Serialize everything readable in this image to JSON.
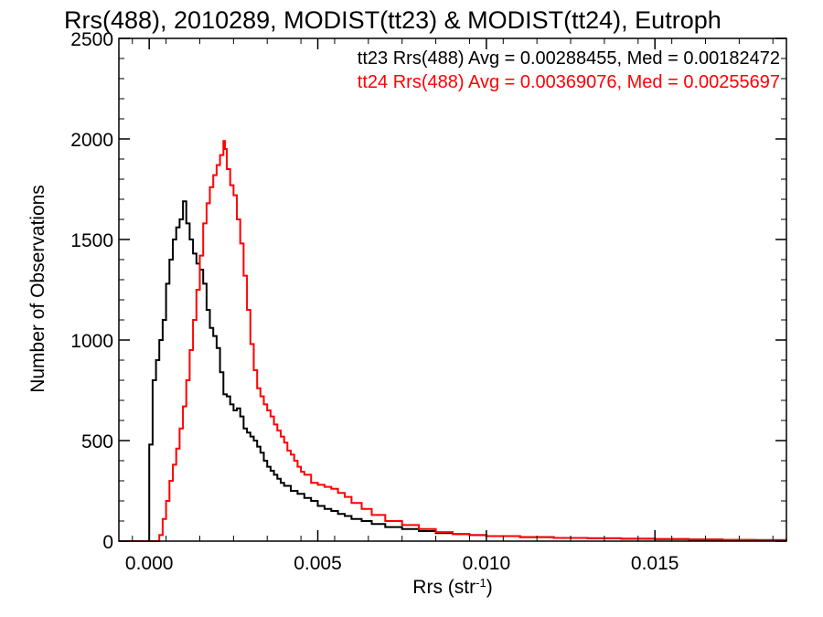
{
  "chart_data": {
    "type": "line",
    "title": "Rrs(488), 2010289, MODIST(tt23) & MODIST(tt24), Eutroph",
    "xlabel": {
      "base": "Rrs (str",
      "sup": "-1",
      "tail": ")"
    },
    "ylabel": "Number of Observations",
    "xlim": [
      -0.0009,
      0.0189
    ],
    "ylim": [
      0,
      2500
    ],
    "xticks": [
      {
        "value": 0.0,
        "label": "0.000"
      },
      {
        "value": 0.005,
        "label": "0.005"
      },
      {
        "value": 0.01,
        "label": "0.010"
      },
      {
        "value": 0.015,
        "label": "0.015"
      }
    ],
    "yticks": [
      {
        "value": 0,
        "label": "0"
      },
      {
        "value": 500,
        "label": "500"
      },
      {
        "value": 1000,
        "label": "1000"
      },
      {
        "value": 1500,
        "label": "1500"
      },
      {
        "value": 2000,
        "label": "2000"
      },
      {
        "value": 2500,
        "label": "2500"
      }
    ],
    "annotations": [
      {
        "text": "tt23 Rrs(488) Avg = 0.00288455, Med = 0.00182472",
        "color": "#000000"
      },
      {
        "text": "tt24 Rrs(488) Avg = 0.00369076, Med = 0.00255697",
        "color": "#ff0000"
      }
    ],
    "series": [
      {
        "color": "#000000",
        "x": [
          -0.0009,
          -0.0001,
          0.0,
          0.0001,
          0.0002,
          0.0003,
          0.0004,
          0.0005,
          0.0006,
          0.0007,
          0.0008,
          0.0009,
          0.001,
          0.0011,
          0.0012,
          0.0013,
          0.0014,
          0.0015,
          0.0016,
          0.0017,
          0.0018,
          0.0019,
          0.002,
          0.0021,
          0.0022,
          0.0023,
          0.0024,
          0.0025,
          0.0026,
          0.0027,
          0.0028,
          0.0029,
          0.003,
          0.0031,
          0.0032,
          0.0033,
          0.0034,
          0.0035,
          0.0036,
          0.0037,
          0.0038,
          0.0039,
          0.004,
          0.0042,
          0.0044,
          0.0046,
          0.0048,
          0.005,
          0.0052,
          0.0054,
          0.0056,
          0.0058,
          0.006,
          0.0063,
          0.0066,
          0.007,
          0.0075,
          0.008,
          0.0085,
          0.009,
          0.0095,
          0.01,
          0.011,
          0.012,
          0.013,
          0.014,
          0.015,
          0.016,
          0.017,
          0.018,
          0.0189
        ],
        "y": [
          0,
          0,
          480,
          800,
          900,
          1000,
          1100,
          1280,
          1400,
          1500,
          1560,
          1600,
          1690,
          1580,
          1500,
          1430,
          1380,
          1350,
          1280,
          1150,
          1060,
          1020,
          960,
          840,
          730,
          720,
          680,
          650,
          660,
          620,
          560,
          540,
          520,
          500,
          470,
          440,
          400,
          370,
          350,
          330,
          310,
          290,
          275,
          250,
          235,
          215,
          200,
          175,
          160,
          150,
          135,
          125,
          110,
          100,
          85,
          70,
          60,
          50,
          40,
          35,
          30,
          25,
          20,
          16,
          14,
          12,
          10,
          8,
          6,
          5,
          4
        ]
      },
      {
        "color": "#ff0000",
        "x": [
          -0.0009,
          0.0002,
          0.0003,
          0.0004,
          0.0005,
          0.0006,
          0.0007,
          0.0008,
          0.0009,
          0.001,
          0.0011,
          0.0012,
          0.0013,
          0.0014,
          0.0015,
          0.0016,
          0.0017,
          0.0018,
          0.0019,
          0.002,
          0.0021,
          0.0022,
          0.00225,
          0.0023,
          0.0024,
          0.0025,
          0.0026,
          0.0027,
          0.0028,
          0.0029,
          0.003,
          0.0031,
          0.0032,
          0.0033,
          0.0034,
          0.0035,
          0.0036,
          0.0037,
          0.0038,
          0.0039,
          0.004,
          0.0041,
          0.0042,
          0.0043,
          0.0044,
          0.0045,
          0.0046,
          0.0048,
          0.005,
          0.0052,
          0.0054,
          0.0056,
          0.0058,
          0.006,
          0.0063,
          0.0066,
          0.007,
          0.0075,
          0.008,
          0.0085,
          0.009,
          0.0095,
          0.01,
          0.011,
          0.012,
          0.013,
          0.014,
          0.015,
          0.016,
          0.017,
          0.018,
          0.0189
        ],
        "y": [
          0,
          0,
          30,
          110,
          200,
          300,
          380,
          460,
          560,
          670,
          800,
          950,
          1100,
          1250,
          1420,
          1580,
          1680,
          1760,
          1820,
          1870,
          1920,
          1990,
          1950,
          1850,
          1770,
          1720,
          1600,
          1480,
          1320,
          1150,
          980,
          850,
          760,
          720,
          680,
          650,
          620,
          580,
          550,
          520,
          490,
          450,
          430,
          400,
          370,
          345,
          330,
          290,
          280,
          270,
          260,
          240,
          220,
          190,
          160,
          130,
          100,
          80,
          60,
          45,
          35,
          30,
          25,
          20,
          16,
          14,
          12,
          10,
          8,
          6,
          5,
          4
        ]
      }
    ]
  }
}
